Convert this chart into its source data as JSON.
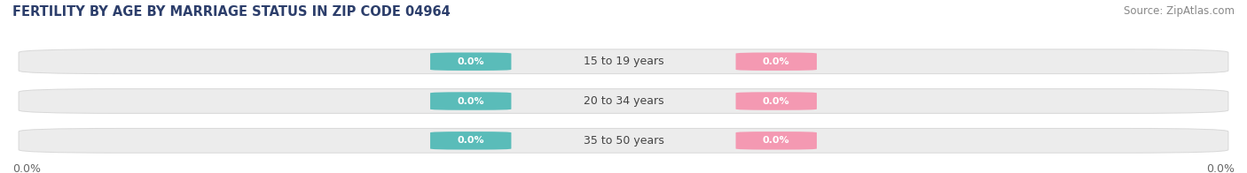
{
  "title": "FERTILITY BY AGE BY MARRIAGE STATUS IN ZIP CODE 04964",
  "source": "Source: ZipAtlas.com",
  "categories": [
    "15 to 19 years",
    "20 to 34 years",
    "35 to 50 years"
  ],
  "married_values": [
    0.0,
    0.0,
    0.0
  ],
  "unmarried_values": [
    0.0,
    0.0,
    0.0
  ],
  "married_color": "#5abcb9",
  "unmarried_color": "#f499b2",
  "bar_bg_color": "#ececec",
  "bar_edge_color": "#d8d8d8",
  "label_text_color": "#ffffff",
  "center_label_color": "#444444",
  "left_axis_label": "0.0%",
  "right_axis_label": "0.0%",
  "title_fontsize": 10.5,
  "source_fontsize": 8.5,
  "tick_fontsize": 9,
  "legend_fontsize": 9,
  "background_color": "#ffffff",
  "title_color": "#2c3e6b",
  "source_color": "#888888",
  "axis_label_color": "#666666"
}
